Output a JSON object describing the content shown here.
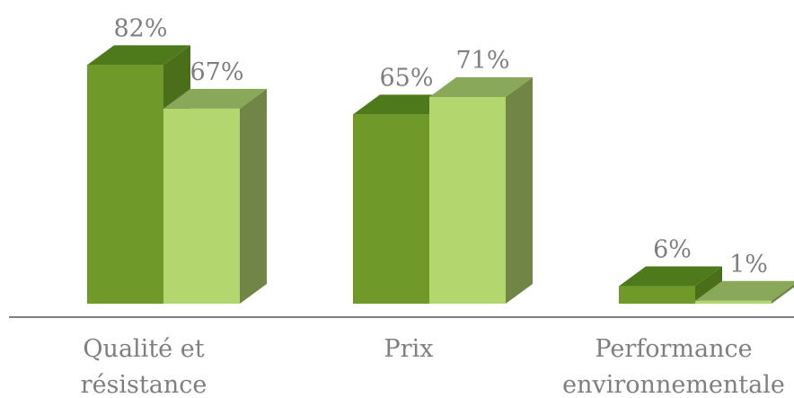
{
  "chart_data": {
    "type": "bar",
    "three_d": true,
    "categories": [
      [
        "Qualité et",
        "résistance"
      ],
      [
        "Prix"
      ],
      [
        "Performance",
        "environnementale"
      ]
    ],
    "series": [
      {
        "values": [
          82,
          65,
          6
        ],
        "value_labels": [
          "82%",
          "65%",
          "6%"
        ],
        "color": "#6f9a2a",
        "top_color": "#4f7a1c",
        "side_color": "#4a6e1a"
      },
      {
        "values": [
          67,
          71,
          1
        ],
        "value_labels": [
          "67%",
          "71%",
          "1%"
        ],
        "color": "#b3d66e",
        "top_color": "#8aa85a",
        "side_color": "#718646"
      }
    ],
    "ylim": [
      0,
      100
    ],
    "grid": false,
    "legend": "none",
    "axis_color": "#7f7f7f",
    "label_color": "#7f7f7f"
  }
}
